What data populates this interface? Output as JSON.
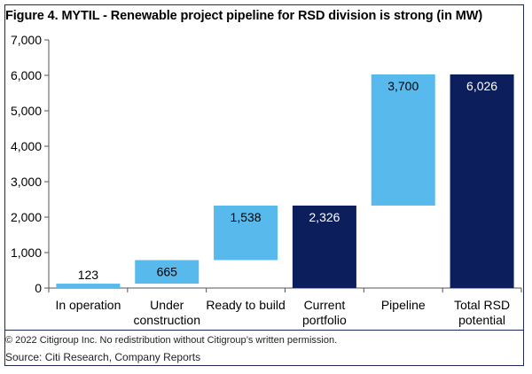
{
  "title": "Figure 4. MYTIL - Renewable project pipeline for RSD division is strong (in MW)",
  "copyright": "© 2022 Citigroup Inc. No redistribution without Citigroup’s written permission.",
  "source": "Source: Citi Research, Company Reports",
  "colors": {
    "light": "#57b9ec",
    "dark": "#0c1f5c",
    "axis": "#555555"
  },
  "chart_data": {
    "type": "bar",
    "subtype": "waterfall",
    "title": "Figure 4. MYTIL - Renewable project pipeline for RSD division is strong (in MW)",
    "xlabel": "",
    "ylabel": "",
    "ylim": [
      0,
      7000
    ],
    "yticks": [
      0,
      1000,
      2000,
      3000,
      4000,
      5000,
      6000,
      7000
    ],
    "ytick_labels": [
      "0",
      "1,000",
      "2,000",
      "3,000",
      "4,000",
      "5,000",
      "6,000",
      "7,000"
    ],
    "grid": false,
    "legend": "none",
    "categories": [
      [
        "In operation"
      ],
      [
        "Under",
        "construction"
      ],
      [
        "Ready to build"
      ],
      [
        "Current",
        "portfolio"
      ],
      [
        "Pipeline"
      ],
      [
        "Total RSD",
        "potential"
      ]
    ],
    "bars": [
      {
        "start": 0,
        "end": 123,
        "label": "123",
        "style": "light"
      },
      {
        "start": 123,
        "end": 788,
        "label": "665",
        "style": "light"
      },
      {
        "start": 788,
        "end": 2326,
        "label": "1,538",
        "style": "light"
      },
      {
        "start": 0,
        "end": 2326,
        "label": "2,326",
        "style": "dark"
      },
      {
        "start": 2326,
        "end": 6026,
        "label": "3,700",
        "style": "light"
      },
      {
        "start": 0,
        "end": 6026,
        "label": "6,026",
        "style": "dark"
      }
    ]
  }
}
